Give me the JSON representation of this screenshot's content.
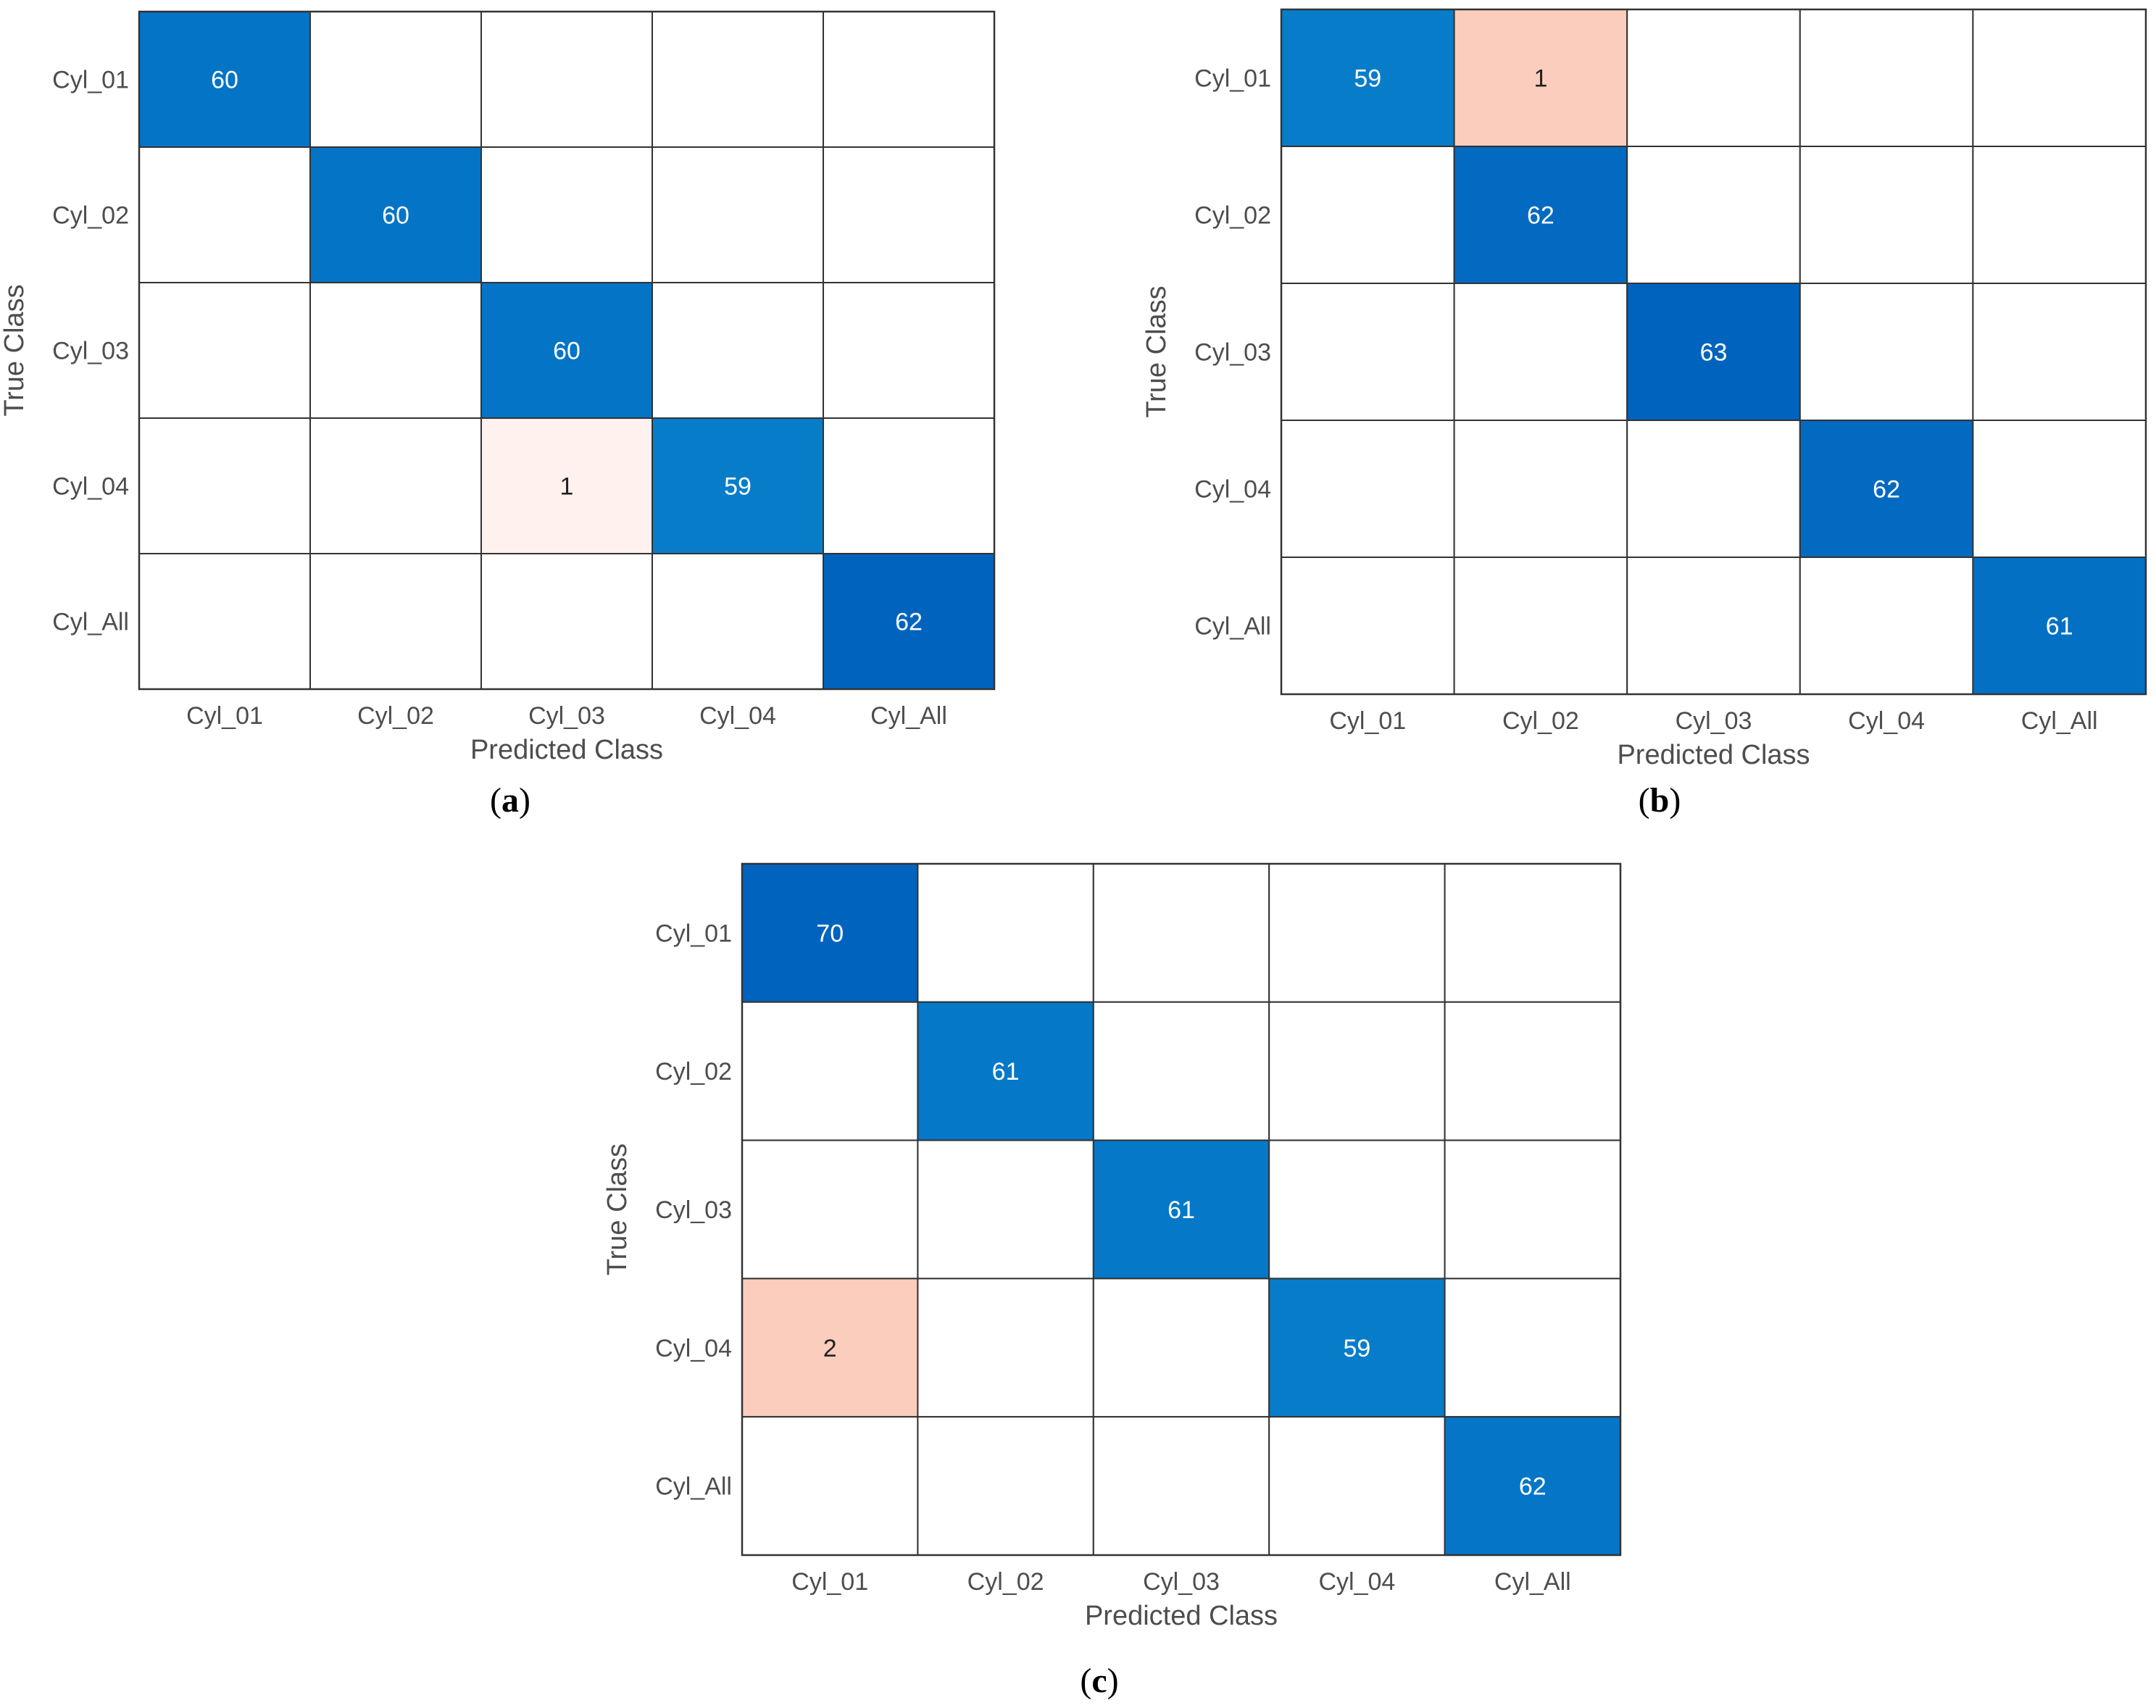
{
  "chart_data": [
    {
      "type": "heatmap",
      "subtype": "confusion-matrix",
      "caption_label": "a",
      "title": "",
      "xlabel": "Predicted Class",
      "ylabel": "True Class",
      "classes": [
        "Cyl_01",
        "Cyl_02",
        "Cyl_03",
        "Cyl_04",
        "Cyl_All"
      ],
      "matrix": [
        [
          60,
          0,
          0,
          0,
          0
        ],
        [
          0,
          60,
          0,
          0,
          0
        ],
        [
          0,
          0,
          60,
          0,
          0
        ],
        [
          0,
          0,
          1,
          59,
          0
        ],
        [
          0,
          0,
          0,
          0,
          62
        ]
      ]
    },
    {
      "type": "heatmap",
      "subtype": "confusion-matrix",
      "caption_label": "b",
      "title": "",
      "xlabel": "Predicted Class",
      "ylabel": "True Class",
      "classes": [
        "Cyl_01",
        "Cyl_02",
        "Cyl_03",
        "Cyl_04",
        "Cyl_All"
      ],
      "matrix": [
        [
          59,
          1,
          0,
          0,
          0
        ],
        [
          0,
          62,
          0,
          0,
          0
        ],
        [
          0,
          0,
          63,
          0,
          0
        ],
        [
          0,
          0,
          0,
          62,
          0
        ],
        [
          0,
          0,
          0,
          0,
          61
        ]
      ]
    },
    {
      "type": "heatmap",
      "subtype": "confusion-matrix",
      "caption_label": "c",
      "title": "",
      "xlabel": "Predicted Class",
      "ylabel": "True Class",
      "classes": [
        "Cyl_01",
        "Cyl_02",
        "Cyl_03",
        "Cyl_04",
        "Cyl_All"
      ],
      "matrix": [
        [
          70,
          0,
          0,
          0,
          0
        ],
        [
          0,
          61,
          0,
          0,
          0
        ],
        [
          0,
          0,
          61,
          0,
          0
        ],
        [
          2,
          0,
          0,
          59,
          0
        ],
        [
          0,
          0,
          0,
          0,
          62
        ]
      ]
    }
  ],
  "colors": {
    "diagonal_high": "#0064be",
    "diagonal_low": "#0a8ad0",
    "off_diagonal_high": "#fbcdbd",
    "off_diagonal_low": "#fff1ee",
    "grid": "#333333",
    "text_light": "#ffffff",
    "text_dark": "#222222"
  }
}
